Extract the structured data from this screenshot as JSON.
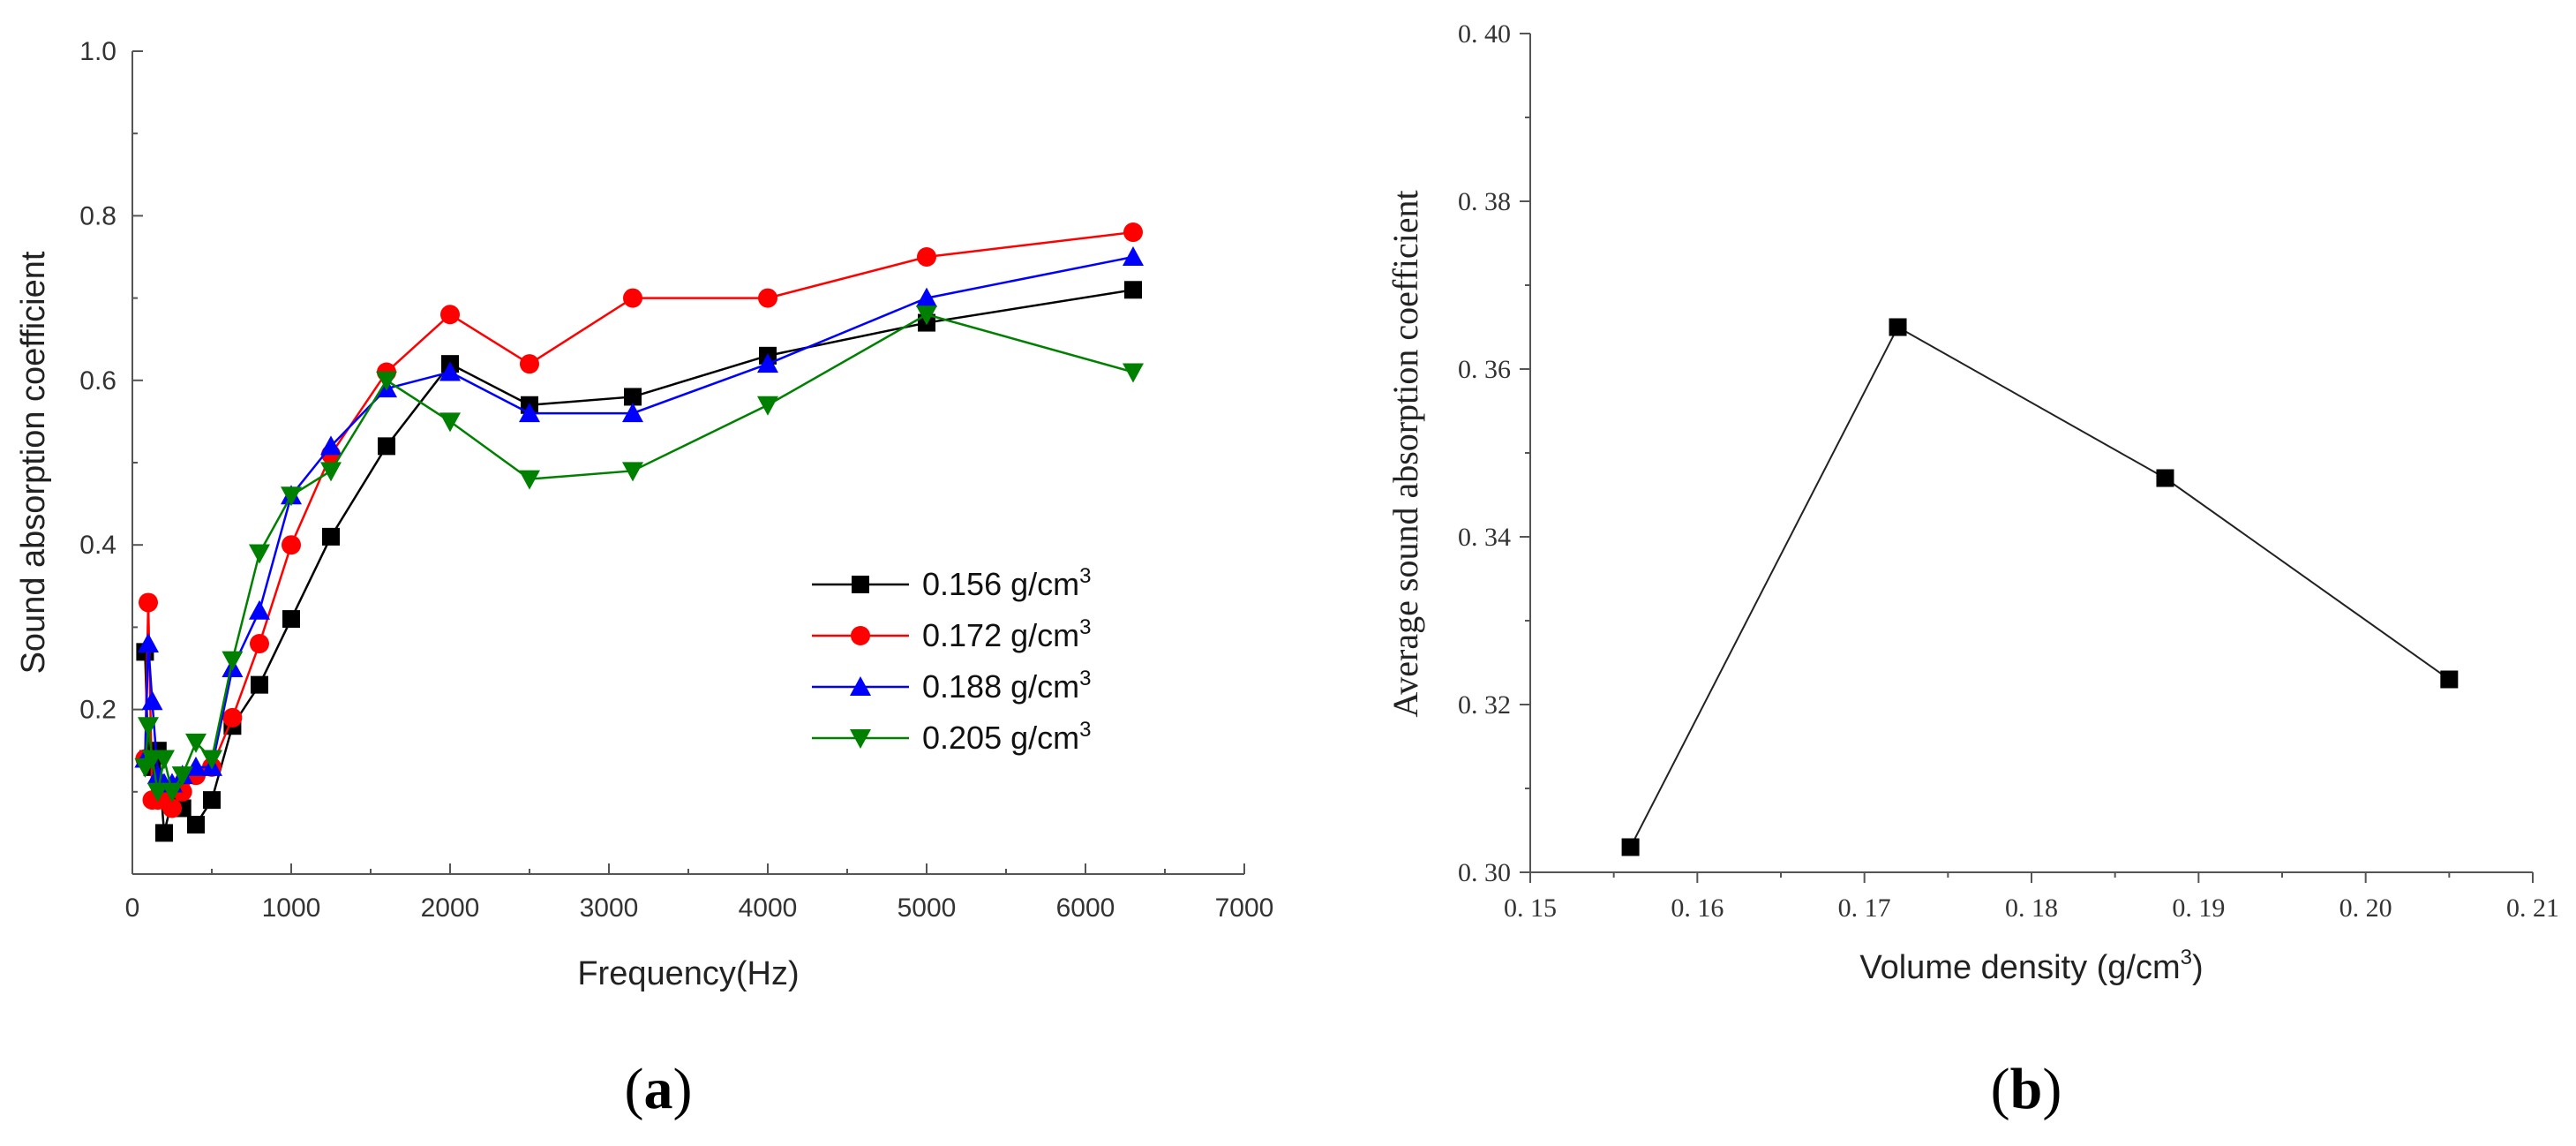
{
  "chart_data": [
    {
      "type": "line",
      "panel_label": "(a)",
      "panel_letter": "a",
      "xlabel": "Frequency(Hz)",
      "ylabel": "Sound absorption coefficient",
      "xlim": [
        0,
        7000
      ],
      "ylim": [
        0,
        1.0
      ],
      "xticks": [
        0,
        1000,
        2000,
        3000,
        4000,
        5000,
        6000,
        7000
      ],
      "xtick_labels": [
        "0",
        "1000",
        "2000",
        "3000",
        "4000",
        "5000",
        "6000",
        "7000"
      ],
      "yticks": [
        0.2,
        0.4,
        0.6,
        0.8,
        1.0
      ],
      "ytick_labels": [
        "0.2",
        "0.4",
        "0.6",
        "0.8",
        "1.0"
      ],
      "legend_position": "center-right",
      "x": [
        80,
        100,
        125,
        160,
        200,
        250,
        315,
        400,
        500,
        630,
        800,
        1000,
        1250,
        1600,
        2000,
        2500,
        3150,
        4000,
        5000,
        6300
      ],
      "series": [
        {
          "name": "0.156 g/cm",
          "unit_sup": "3",
          "color": "#000000",
          "marker": "square",
          "values": [
            0.27,
            0.14,
            0.13,
            0.15,
            0.05,
            0.09,
            0.08,
            0.06,
            0.09,
            0.18,
            0.23,
            0.31,
            0.41,
            0.52,
            0.62,
            0.57,
            0.58,
            0.63,
            0.67,
            0.71
          ]
        },
        {
          "name": "0.172 g/cm",
          "unit_sup": "3",
          "color": "#ff0000",
          "marker": "circle",
          "values": [
            0.14,
            0.33,
            0.09,
            0.09,
            0.09,
            0.08,
            0.1,
            0.12,
            0.13,
            0.19,
            0.28,
            0.4,
            0.51,
            0.61,
            0.68,
            0.62,
            0.7,
            0.7,
            0.75,
            0.78
          ]
        },
        {
          "name": "0.188 g/cm",
          "unit_sup": "3",
          "color": "#0000ff",
          "marker": "triangle-up",
          "values": [
            0.14,
            0.28,
            0.21,
            0.12,
            0.11,
            0.11,
            0.12,
            0.13,
            0.13,
            0.25,
            0.32,
            0.46,
            0.52,
            0.59,
            0.61,
            0.56,
            0.56,
            0.62,
            0.7,
            0.75
          ]
        },
        {
          "name": "0.205 g/cm",
          "unit_sup": "3",
          "color": "#008000",
          "marker": "triangle-down",
          "values": [
            0.13,
            0.18,
            0.14,
            0.1,
            0.14,
            0.1,
            0.12,
            0.16,
            0.14,
            0.26,
            0.39,
            0.46,
            0.49,
            0.6,
            0.55,
            0.48,
            0.49,
            0.57,
            0.68,
            0.61
          ]
        }
      ]
    },
    {
      "type": "line",
      "panel_label": "(b)",
      "panel_letter": "b",
      "xlabel": "Volume density (g/cm",
      "xlabel_sup": "3",
      "xlabel_suffix": ")",
      "ylabel": "Average sound absorption coefficient",
      "xlim": [
        0.15,
        0.21
      ],
      "ylim": [
        0.3,
        0.4
      ],
      "xticks": [
        0.15,
        0.16,
        0.17,
        0.18,
        0.19,
        0.2,
        0.21
      ],
      "xtick_labels": [
        "0. 15",
        "0. 16",
        "0. 17",
        "0. 18",
        "0. 19",
        "0. 20",
        "0. 21"
      ],
      "yticks": [
        0.3,
        0.32,
        0.34,
        0.36,
        0.38,
        0.4
      ],
      "ytick_labels": [
        "0. 30",
        "0. 32",
        "0. 34",
        "0. 36",
        "0. 38",
        "0. 40"
      ],
      "series": [
        {
          "name": "Average sound absorption coefficient",
          "color": "#000000",
          "marker": "square",
          "x": [
            0.156,
            0.172,
            0.188,
            0.205
          ],
          "values": [
            0.303,
            0.365,
            0.347,
            0.323
          ]
        }
      ]
    }
  ]
}
